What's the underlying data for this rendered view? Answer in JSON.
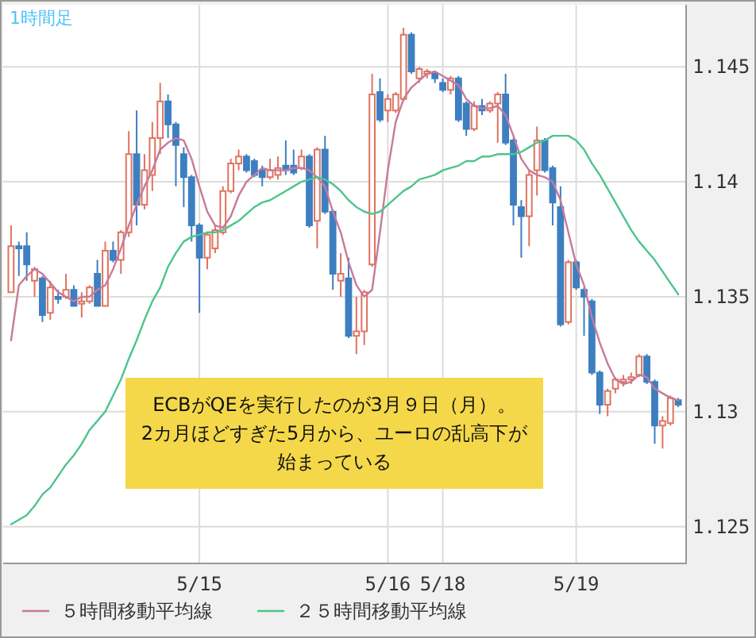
{
  "chart_data": {
    "type": "candlestick",
    "title": "1時間足",
    "categories": [
      null,
      null,
      null,
      null,
      null,
      null,
      null,
      null,
      null,
      null,
      null,
      null,
      null,
      null,
      null,
      null,
      null,
      null,
      null,
      null,
      null,
      null,
      null,
      null,
      "5/15",
      null,
      null,
      null,
      null,
      null,
      null,
      null,
      null,
      null,
      null,
      null,
      null,
      null,
      null,
      null,
      null,
      null,
      null,
      null,
      null,
      null,
      null,
      null,
      "5/16",
      null,
      null,
      null,
      null,
      null,
      null,
      "5/18",
      null,
      null,
      null,
      null,
      null,
      null,
      null,
      null,
      null,
      null,
      null,
      null,
      null,
      null,
      null,
      null,
      "5/19",
      null,
      null,
      null,
      null,
      null,
      null,
      null,
      null,
      null,
      null,
      null,
      null,
      null
    ],
    "ohlc": [
      [
        1.1352,
        1.1381,
        1.1352,
        1.1372
      ],
      [
        1.1372,
        1.1374,
        1.1359,
        1.1371
      ],
      [
        1.1372,
        1.1378,
        1.1357,
        1.1364
      ],
      [
        1.1357,
        1.1363,
        1.135,
        1.1362
      ],
      [
        1.1358,
        1.1359,
        1.1339,
        1.1342
      ],
      [
        1.1343,
        1.1357,
        1.134,
        1.1354
      ],
      [
        1.135,
        1.1353,
        1.1347,
        1.1349
      ],
      [
        1.135,
        1.136,
        1.1349,
        1.1353
      ],
      [
        1.1353,
        1.1355,
        1.1346,
        1.1346
      ],
      [
        1.1347,
        1.1352,
        1.1341,
        1.1348
      ],
      [
        1.1348,
        1.1355,
        1.1347,
        1.1354
      ],
      [
        1.136,
        1.1366,
        1.1346,
        1.1346
      ],
      [
        1.1346,
        1.1374,
        1.1346,
        1.137
      ],
      [
        1.137,
        1.1374,
        1.1365,
        1.1366
      ],
      [
        1.1366,
        1.1379,
        1.136,
        1.1378
      ],
      [
        1.1378,
        1.1422,
        1.1376,
        1.1412
      ],
      [
        1.1412,
        1.1431,
        1.1381,
        1.139
      ],
      [
        1.139,
        1.1412,
        1.1388,
        1.1405
      ],
      [
        1.1403,
        1.1426,
        1.1396,
        1.1419
      ],
      [
        1.1419,
        1.1443,
        1.1412,
        1.1435
      ],
      [
        1.1435,
        1.1438,
        1.1419,
        1.1425
      ],
      [
        1.1425,
        1.1426,
        1.1398,
        1.1416
      ],
      [
        1.1412,
        1.1415,
        1.1389,
        1.1402
      ],
      [
        1.1402,
        1.1403,
        1.1374,
        1.1381
      ],
      [
        1.1381,
        1.1382,
        1.1343,
        1.1367
      ],
      [
        1.1367,
        1.1378,
        1.1362,
        1.1377
      ],
      [
        1.1371,
        1.1381,
        1.1369,
        1.1379
      ],
      [
        1.1378,
        1.1398,
        1.1377,
        1.1396
      ],
      [
        1.1396,
        1.141,
        1.1395,
        1.1408
      ],
      [
        1.1408,
        1.1414,
        1.1405,
        1.1411
      ],
      [
        1.1411,
        1.1412,
        1.1404,
        1.1405
      ],
      [
        1.1409,
        1.141,
        1.1402,
        1.1403
      ],
      [
        1.1405,
        1.1407,
        1.1398,
        1.1402
      ],
      [
        1.1402,
        1.141,
        1.1401,
        1.1405
      ],
      [
        1.1403,
        1.1411,
        1.1401,
        1.1406
      ],
      [
        1.1407,
        1.1418,
        1.1403,
        1.1405
      ],
      [
        1.1407,
        1.1414,
        1.1403,
        1.1404
      ],
      [
        1.1406,
        1.1414,
        1.1405,
        1.1411
      ],
      [
        1.1411,
        1.1412,
        1.138,
        1.1381
      ],
      [
        1.1383,
        1.1415,
        1.1371,
        1.1414
      ],
      [
        1.1414,
        1.142,
        1.1386,
        1.1387
      ],
      [
        1.1387,
        1.1388,
        1.1353,
        1.136
      ],
      [
        1.1357,
        1.1369,
        1.135,
        1.136
      ],
      [
        1.1358,
        1.1367,
        1.1332,
        1.1333
      ],
      [
        1.1333,
        1.135,
        1.1325,
        1.1335
      ],
      [
        1.1335,
        1.1353,
        1.1329,
        1.1352
      ],
      [
        1.1364,
        1.1447,
        1.1363,
        1.1438
      ],
      [
        1.1439,
        1.1445,
        1.1426,
        1.1427
      ],
      [
        1.1431,
        1.1438,
        1.1426,
        1.1436
      ],
      [
        1.1431,
        1.1439,
        1.143,
        1.1438
      ],
      [
        1.1436,
        1.1467,
        1.1435,
        1.1464
      ],
      [
        1.1464,
        1.1465,
        1.1447,
        1.1448
      ],
      [
        1.1445,
        1.145,
        1.1443,
        1.1449
      ],
      [
        1.1447,
        1.1449,
        1.1445,
        1.1448
      ],
      [
        1.1447,
        1.1448,
        1.1443,
        1.1445
      ],
      [
        1.1443,
        1.1445,
        1.1439,
        1.144
      ],
      [
        1.144,
        1.1446,
        1.1438,
        1.1445
      ],
      [
        1.1445,
        1.1446,
        1.1426,
        1.1427
      ],
      [
        1.1434,
        1.1435,
        1.142,
        1.1423
      ],
      [
        1.1423,
        1.1435,
        1.1422,
        1.1433
      ],
      [
        1.1433,
        1.1436,
        1.1429,
        1.1431
      ],
      [
        1.1431,
        1.1435,
        1.143,
        1.1434
      ],
      [
        1.1434,
        1.1439,
        1.1417,
        1.1438
      ],
      [
        1.1438,
        1.1447,
        1.1416,
        1.1417
      ],
      [
        1.1418,
        1.1419,
        1.1381,
        1.139
      ],
      [
        1.1389,
        1.1392,
        1.1367,
        1.1385
      ],
      [
        1.1385,
        1.1405,
        1.1372,
        1.1403
      ],
      [
        1.1405,
        1.1424,
        1.1394,
        1.1418
      ],
      [
        1.1418,
        1.1419,
        1.1404,
        1.1405
      ],
      [
        1.1406,
        1.1407,
        1.1381,
        1.1391
      ],
      [
        1.1389,
        1.1398,
        1.1337,
        1.1338
      ],
      [
        1.1339,
        1.1366,
        1.1338,
        1.1365
      ],
      [
        1.1365,
        1.1366,
        1.1353,
        1.1354
      ],
      [
        1.1353,
        1.1354,
        1.1333,
        1.135
      ],
      [
        1.1348,
        1.1349,
        1.1316,
        1.1317
      ],
      [
        1.1317,
        1.1318,
        1.1299,
        1.1303
      ],
      [
        1.1303,
        1.131,
        1.1298,
        1.1309
      ],
      [
        1.131,
        1.1315,
        1.1308,
        1.1314
      ],
      [
        1.1313,
        1.1316,
        1.1311,
        1.1314
      ],
      [
        1.1314,
        1.1317,
        1.1312,
        1.1315
      ],
      [
        1.1316,
        1.1325,
        1.1315,
        1.1324
      ],
      [
        1.1324,
        1.1325,
        1.1312,
        1.1313
      ],
      [
        1.1313,
        1.1314,
        1.1286,
        1.1294
      ],
      [
        1.1294,
        1.1298,
        1.1284,
        1.1296
      ],
      [
        1.1295,
        1.1307,
        1.1294,
        1.1306
      ],
      [
        1.1305,
        1.1306,
        1.1302,
        1.1303
      ]
    ],
    "series": [
      {
        "type": "line",
        "name": "５時間移動平均線",
        "color": "#c8799a",
        "values": [
          1.1331,
          1.1355,
          1.1359,
          1.1362,
          1.136,
          1.1356,
          1.1352,
          1.135,
          1.1348,
          1.135,
          1.135,
          1.1353,
          1.1355,
          1.1362,
          1.1371,
          1.1381,
          1.139,
          1.1398,
          1.1405,
          1.1414,
          1.1417,
          1.1419,
          1.1418,
          1.141,
          1.1398,
          1.1387,
          1.1381,
          1.138,
          1.1385,
          1.1394,
          1.14,
          1.1403,
          1.1406,
          1.1405,
          1.1405,
          1.1405,
          1.1406,
          1.1406,
          1.1405,
          1.1402,
          1.1398,
          1.1387,
          1.1378,
          1.1365,
          1.1355,
          1.135,
          1.1353,
          1.1378,
          1.1405,
          1.1426,
          1.1436,
          1.1441,
          1.1444,
          1.1447,
          1.1448,
          1.1446,
          1.1444,
          1.1442,
          1.1436,
          1.1433,
          1.1432,
          1.1432,
          1.1433,
          1.1429,
          1.142,
          1.141,
          1.1405,
          1.1403,
          1.1402,
          1.14,
          1.1392,
          1.1378,
          1.1364,
          1.1355,
          1.1341,
          1.133,
          1.1321,
          1.1314,
          1.1312,
          1.1313,
          1.1316,
          1.1315,
          1.131,
          1.1308,
          1.1306,
          1.1305
        ]
      },
      {
        "type": "line",
        "name": "２５時間移動平均線",
        "color": "#4cc48c",
        "values": [
          1.1251,
          1.1253,
          1.1255,
          1.1259,
          1.1264,
          1.1267,
          1.1272,
          1.1277,
          1.1281,
          1.1286,
          1.1292,
          1.1296,
          1.13,
          1.1307,
          1.1314,
          1.1323,
          1.1331,
          1.134,
          1.1348,
          1.1354,
          1.1363,
          1.1369,
          1.1374,
          1.1376,
          1.1377,
          1.1378,
          1.1378,
          1.1379,
          1.1381,
          1.1383,
          1.1386,
          1.1389,
          1.1391,
          1.1392,
          1.1394,
          1.1396,
          1.1398,
          1.14,
          1.1401,
          1.1402,
          1.1401,
          1.1399,
          1.1396,
          1.1392,
          1.1389,
          1.1387,
          1.1386,
          1.1387,
          1.139,
          1.1393,
          1.1396,
          1.1398,
          1.1401,
          1.1402,
          1.1403,
          1.1405,
          1.1406,
          1.1407,
          1.1409,
          1.1409,
          1.1411,
          1.1411,
          1.1412,
          1.1412,
          1.1412,
          1.1413,
          1.1415,
          1.1417,
          1.1418,
          1.142,
          1.142,
          1.142,
          1.1418,
          1.1414,
          1.1408,
          1.1403,
          1.1397,
          1.1391,
          1.1385,
          1.1379,
          1.1374,
          1.137,
          1.1366,
          1.1361,
          1.1356,
          1.1351
        ]
      }
    ],
    "ylim": [
      1.1234,
      1.1477
    ],
    "yticks": [
      1.125,
      1.13,
      1.135,
      1.14,
      1.145
    ],
    "grid": true,
    "legend": "bottom",
    "annotations": [
      "ECBがQEを実行したのが3月９日（月）。",
      "2カ月ほどすぎた5月から、ユーロの乱高下が始まっている"
    ]
  }
}
